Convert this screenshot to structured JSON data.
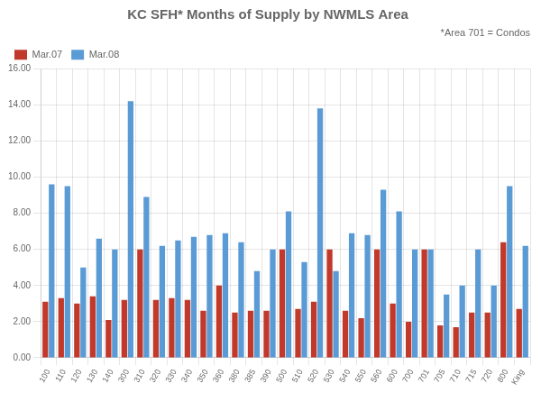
{
  "chart_data": {
    "type": "bar",
    "title": "KC SFH* Months of Supply by NWMLS Area",
    "annotation": "*Area 701 = Condos",
    "categories": [
      "100",
      "110",
      "120",
      "130",
      "140",
      "300",
      "310",
      "320",
      "330",
      "340",
      "350",
      "360",
      "380",
      "385",
      "390",
      "500",
      "510",
      "520",
      "530",
      "540",
      "550",
      "560",
      "600",
      "700",
      "701",
      "705",
      "710",
      "715",
      "720",
      "800",
      "King"
    ],
    "series": [
      {
        "name": "Mar.07",
        "color": "#C0392B",
        "values": [
          3.1,
          3.3,
          3.0,
          3.4,
          2.1,
          3.2,
          6.0,
          3.2,
          3.3,
          3.2,
          2.6,
          4.0,
          2.5,
          2.6,
          2.6,
          6.0,
          2.7,
          3.1,
          6.0,
          2.6,
          2.2,
          6.0,
          3.0,
          2.0,
          6.0,
          1.8,
          1.7,
          2.5,
          2.5,
          6.4,
          2.7
        ]
      },
      {
        "name": "Mar.08",
        "color": "#5B9BD5",
        "values": [
          9.6,
          9.5,
          5.0,
          6.6,
          6.0,
          14.2,
          8.9,
          6.2,
          6.5,
          6.7,
          6.8,
          6.9,
          6.4,
          4.8,
          6.0,
          8.1,
          5.3,
          13.8,
          4.8,
          6.9,
          6.8,
          9.3,
          8.1,
          6.0,
          6.0,
          3.5,
          4.0,
          6.0,
          4.0,
          9.5,
          6.2
        ]
      }
    ],
    "ylim": [
      0.0,
      16.0
    ],
    "yticks": [
      {
        "value": 0,
        "label": "0.00"
      },
      {
        "value": 2,
        "label": "2.00"
      },
      {
        "value": 4,
        "label": "4.00"
      },
      {
        "value": 6,
        "label": "6.00"
      },
      {
        "value": 8,
        "label": "8.00"
      },
      {
        "value": 10,
        "label": "10.00"
      },
      {
        "value": 12,
        "label": "12.00"
      },
      {
        "value": 14,
        "label": "14.00"
      },
      {
        "value": 16,
        "label": "16.00"
      }
    ],
    "grid": true,
    "legend": "upper left"
  }
}
